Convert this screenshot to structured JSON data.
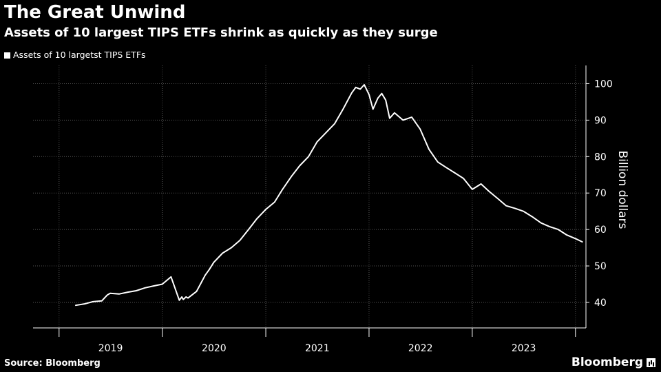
{
  "header": {
    "title": "The Great Unwind",
    "subtitle": "Assets of 10 largest TIPS ETFs shrink as quickly as they surge"
  },
  "legend": {
    "label": "Assets of 10 largetst TIPS ETFs"
  },
  "footer": {
    "source": "Source: Bloomberg",
    "brand": "Bloomberg"
  },
  "colors": {
    "background": "#000000",
    "line": "#ffffff",
    "grid": "#555555"
  },
  "chart_data": {
    "type": "line",
    "title": "The Great Unwind",
    "subtitle": "Assets of 10 largest TIPS ETFs shrink as quickly as they surge",
    "xlabel": "",
    "ylabel": "Billion dollars",
    "ylim": [
      33,
      105
    ],
    "yticks": [
      40,
      50,
      60,
      70,
      80,
      90,
      100
    ],
    "xlim": [
      "2018-10-01",
      "2024-02-07"
    ],
    "x_tick_labels": [
      "2019",
      "2020",
      "2021",
      "2022",
      "2023"
    ],
    "x_year_boundaries": [
      "2019-01-01",
      "2020-01-01",
      "2021-01-01",
      "2022-01-01",
      "2023-01-01",
      "2024-01-01"
    ],
    "y_axis_position": "right",
    "grid": true,
    "legend_position": "top-left",
    "series": [
      {
        "name": "Assets of 10 largetst TIPS ETFs",
        "color": "#ffffff",
        "x": [
          "2019-03-01",
          "2019-04-01",
          "2019-05-01",
          "2019-06-01",
          "2019-06-20",
          "2019-07-01",
          "2019-08-01",
          "2019-09-01",
          "2019-10-01",
          "2019-11-01",
          "2019-12-01",
          "2020-01-01",
          "2020-02-01",
          "2020-03-01",
          "2020-03-10",
          "2020-03-15",
          "2020-03-25",
          "2020-04-01",
          "2020-05-01",
          "2020-06-01",
          "2020-06-15",
          "2020-07-01",
          "2020-08-01",
          "2020-09-01",
          "2020-10-01",
          "2020-11-01",
          "2020-12-01",
          "2021-01-01",
          "2021-02-01",
          "2021-03-01",
          "2021-04-01",
          "2021-05-01",
          "2021-06-01",
          "2021-07-01",
          "2021-08-01",
          "2021-09-01",
          "2021-10-01",
          "2021-11-01",
          "2021-11-15",
          "2021-12-01",
          "2021-12-15",
          "2022-01-01",
          "2022-01-15",
          "2022-02-01",
          "2022-02-15",
          "2022-03-01",
          "2022-03-15",
          "2022-04-01",
          "2022-05-01",
          "2022-06-01",
          "2022-07-01",
          "2022-08-01",
          "2022-09-01",
          "2022-10-01",
          "2022-11-01",
          "2022-12-01",
          "2023-01-01",
          "2023-02-01",
          "2023-03-01",
          "2023-04-01",
          "2023-05-01",
          "2023-06-01",
          "2023-07-01",
          "2023-08-01",
          "2023-09-01",
          "2023-10-01",
          "2023-11-01",
          "2023-12-01",
          "2024-01-01",
          "2024-01-25"
        ],
        "values": [
          39.2,
          39.6,
          40.2,
          40.4,
          42.0,
          42.5,
          42.3,
          42.8,
          43.2,
          44.0,
          44.5,
          45.0,
          47.0,
          40.6,
          41.5,
          40.8,
          41.5,
          41.2,
          43.0,
          47.5,
          49.0,
          51.0,
          53.5,
          55.0,
          57.0,
          60.0,
          63.0,
          65.5,
          67.5,
          71.0,
          74.5,
          77.5,
          80.0,
          84.0,
          86.5,
          89.0,
          93.0,
          97.5,
          99.0,
          98.5,
          99.7,
          97.0,
          93.0,
          96.0,
          97.3,
          95.5,
          90.5,
          92.0,
          90.0,
          90.8,
          87.5,
          82.0,
          78.5,
          77.0,
          75.5,
          74.0,
          71.0,
          72.5,
          70.5,
          68.5,
          66.5,
          65.8,
          65.0,
          63.5,
          61.8,
          60.8,
          60.0,
          58.5,
          57.5,
          56.6
        ]
      }
    ]
  }
}
